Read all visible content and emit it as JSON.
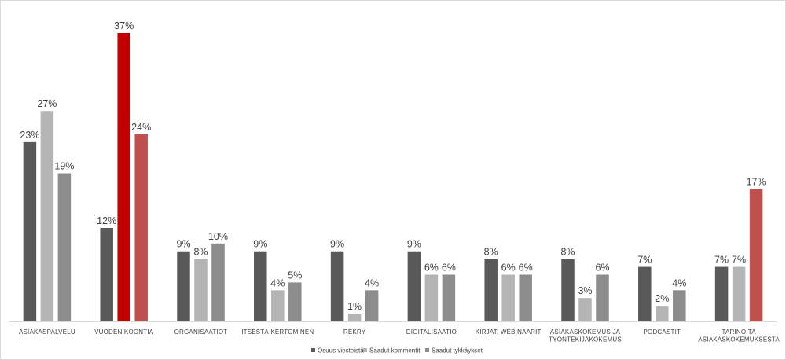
{
  "chart_data": {
    "type": "bar",
    "title": "",
    "xlabel": "",
    "ylabel": "",
    "ylim": [
      0,
      38
    ],
    "grid": false,
    "legend_position": "bottom",
    "categories": [
      [
        "ASIAKASPALVELU"
      ],
      [
        "VUODEN KOONTIA"
      ],
      [
        "ORGANISAATIOT"
      ],
      [
        "ITSESTÄ KERTOMINEN"
      ],
      [
        "REKRY"
      ],
      [
        "DIGITALISAATIO"
      ],
      [
        "KIRJAT, WEBINAARIT"
      ],
      [
        "ASIAKASKOKEMUS JA",
        "TYÖNTEKIJÄKOKEMUS"
      ],
      [
        "PODCASTIT"
      ],
      [
        "TARINOITA",
        "ASIAKASKOKEMUKSESTA"
      ]
    ],
    "series": [
      {
        "name": "Osuus viesteistä",
        "color": "#595959",
        "values": [
          23,
          12,
          9,
          9,
          9,
          9,
          8,
          8,
          7,
          7
        ],
        "labels": [
          "23%",
          "12%",
          "9%",
          "9%",
          "9%",
          "9%",
          "8%",
          "8%",
          "7%",
          "7%"
        ]
      },
      {
        "name": "Saadut kommentit",
        "color": "#b4b4b4",
        "values": [
          27,
          37,
          8,
          4,
          1,
          6,
          6,
          3,
          2,
          7
        ],
        "labels": [
          "27%",
          "37%",
          "8%",
          "4%",
          "1%",
          "6%",
          "6%",
          "3%",
          "2%",
          "7%"
        ]
      },
      {
        "name": "Saadut tykkäykset",
        "color": "#8c8c8c",
        "values": [
          19,
          24,
          10,
          5,
          4,
          6,
          6,
          6,
          4,
          17
        ],
        "labels": [
          "19%",
          "24%",
          "10%",
          "5%",
          "4%",
          "6%",
          "6%",
          "6%",
          "4%",
          "17%"
        ]
      }
    ],
    "highlights": [
      {
        "series": 1,
        "category": 1,
        "color": "#c00000"
      },
      {
        "series": 2,
        "category": 1,
        "color": "#c0504d"
      },
      {
        "series": 2,
        "category": 9,
        "color": "#c0504d"
      }
    ],
    "axis_color": "#d9d9d9"
  }
}
